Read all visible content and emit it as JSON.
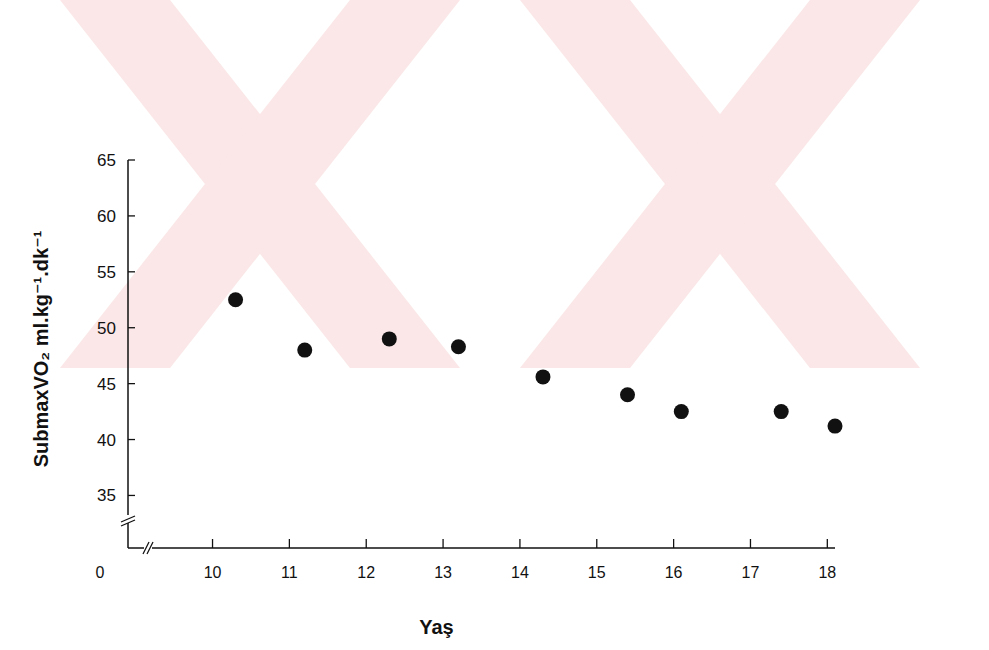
{
  "chart_data": {
    "type": "scatter",
    "x_label": "Yaş",
    "y_label": "SubmaxVO₂ ml.kg⁻¹.dk⁻¹",
    "annotations": [
      "0"
    ],
    "x": [
      10.3,
      11.2,
      12.3,
      13.2,
      14.3,
      15.4,
      16.1,
      17.4,
      18.1
    ],
    "values": [
      52.5,
      48.0,
      49.0,
      48.3,
      45.6,
      44.0,
      42.5,
      42.5,
      41.2
    ],
    "color": "#111111",
    "marker": "circle",
    "xlim": [
      8.9,
      18.1
    ],
    "ylim": [
      30.3,
      65
    ],
    "xticks": [
      10,
      11,
      12,
      13,
      14,
      15,
      16,
      17,
      18
    ],
    "yticks": [
      35,
      40,
      45,
      50,
      55,
      60,
      65
    ],
    "grid": false
  }
}
